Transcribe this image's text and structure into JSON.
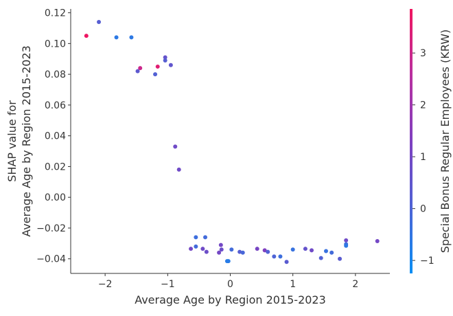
{
  "chart_data": {
    "type": "scatter",
    "title": "",
    "xlabel": "Average Age by Region 2015-2023",
    "ylabel_lines": [
      "SHAP value for",
      "Average Age by Region 2015-2023"
    ],
    "xlim": [
      -2.55,
      2.55
    ],
    "ylim": [
      -0.0495,
      0.1225
    ],
    "x_ticks": [
      -2,
      -1,
      0,
      1,
      2
    ],
    "y_ticks": [
      -0.04,
      -0.02,
      0.0,
      0.02,
      0.04,
      0.06,
      0.08,
      0.1,
      0.12
    ],
    "colorbar": {
      "label": "Special Bonus Regular Employees (KRW)",
      "range": [
        -1.25,
        3.85
      ],
      "ticks": [
        -1,
        0,
        1,
        2,
        3
      ],
      "colors": [
        "#0a8ff4",
        "#4f63d5",
        "#7f40c0",
        "#b930a0",
        "#f01660"
      ]
    },
    "points": [
      {
        "x": -2.3,
        "y": 0.105,
        "c": 3.8
      },
      {
        "x": -2.1,
        "y": 0.114,
        "c": 0.2
      },
      {
        "x": -1.82,
        "y": 0.104,
        "c": -0.6
      },
      {
        "x": -1.58,
        "y": 0.104,
        "c": -0.6
      },
      {
        "x": -1.48,
        "y": 0.082,
        "c": 0.4
      },
      {
        "x": -1.44,
        "y": 0.084,
        "c": 3.0
      },
      {
        "x": -1.2,
        "y": 0.08,
        "c": 0.1
      },
      {
        "x": -1.16,
        "y": 0.085,
        "c": 3.5
      },
      {
        "x": -1.04,
        "y": 0.091,
        "c": 0.6
      },
      {
        "x": -1.04,
        "y": 0.089,
        "c": 0.2
      },
      {
        "x": -0.95,
        "y": 0.086,
        "c": 0.5
      },
      {
        "x": -0.88,
        "y": 0.033,
        "c": 0.9
      },
      {
        "x": -0.82,
        "y": 0.018,
        "c": 0.9
      },
      {
        "x": -0.63,
        "y": -0.0335,
        "c": 1.0
      },
      {
        "x": -0.55,
        "y": -0.026,
        "c": -0.3
      },
      {
        "x": -0.55,
        "y": -0.032,
        "c": -0.2
      },
      {
        "x": -0.44,
        "y": -0.0335,
        "c": 0.9
      },
      {
        "x": -0.4,
        "y": -0.026,
        "c": -0.2
      },
      {
        "x": -0.38,
        "y": -0.0355,
        "c": 0.8
      },
      {
        "x": -0.18,
        "y": -0.036,
        "c": 1.0
      },
      {
        "x": -0.15,
        "y": -0.031,
        "c": 1.0
      },
      {
        "x": -0.14,
        "y": -0.034,
        "c": 0.8
      },
      {
        "x": -0.05,
        "y": -0.0415,
        "c": -0.7
      },
      {
        "x": -0.03,
        "y": -0.0415,
        "c": -0.7
      },
      {
        "x": 0.02,
        "y": -0.034,
        "c": -0.2
      },
      {
        "x": 0.15,
        "y": -0.0355,
        "c": 0.2
      },
      {
        "x": 0.2,
        "y": -0.036,
        "c": -0.1
      },
      {
        "x": 0.43,
        "y": -0.0335,
        "c": 1.1
      },
      {
        "x": 0.55,
        "y": -0.0345,
        "c": 1.3
      },
      {
        "x": 0.6,
        "y": -0.0355,
        "c": 0.1
      },
      {
        "x": 0.7,
        "y": -0.0385,
        "c": 0.0
      },
      {
        "x": 0.8,
        "y": -0.0385,
        "c": -0.3
      },
      {
        "x": 0.9,
        "y": -0.042,
        "c": 0.3
      },
      {
        "x": 1.0,
        "y": -0.034,
        "c": -0.4
      },
      {
        "x": 1.2,
        "y": -0.0335,
        "c": 0.6
      },
      {
        "x": 1.3,
        "y": -0.0345,
        "c": 0.9
      },
      {
        "x": 1.45,
        "y": -0.0395,
        "c": 0.1
      },
      {
        "x": 1.53,
        "y": -0.035,
        "c": -0.4
      },
      {
        "x": 1.62,
        "y": -0.036,
        "c": -0.2
      },
      {
        "x": 1.75,
        "y": -0.04,
        "c": 0.3
      },
      {
        "x": 1.85,
        "y": -0.028,
        "c": 0.9
      },
      {
        "x": 1.85,
        "y": -0.0305,
        "c": -0.3
      },
      {
        "x": 1.85,
        "y": -0.0315,
        "c": -0.6
      },
      {
        "x": 2.35,
        "y": -0.0285,
        "c": 1.0
      }
    ]
  }
}
